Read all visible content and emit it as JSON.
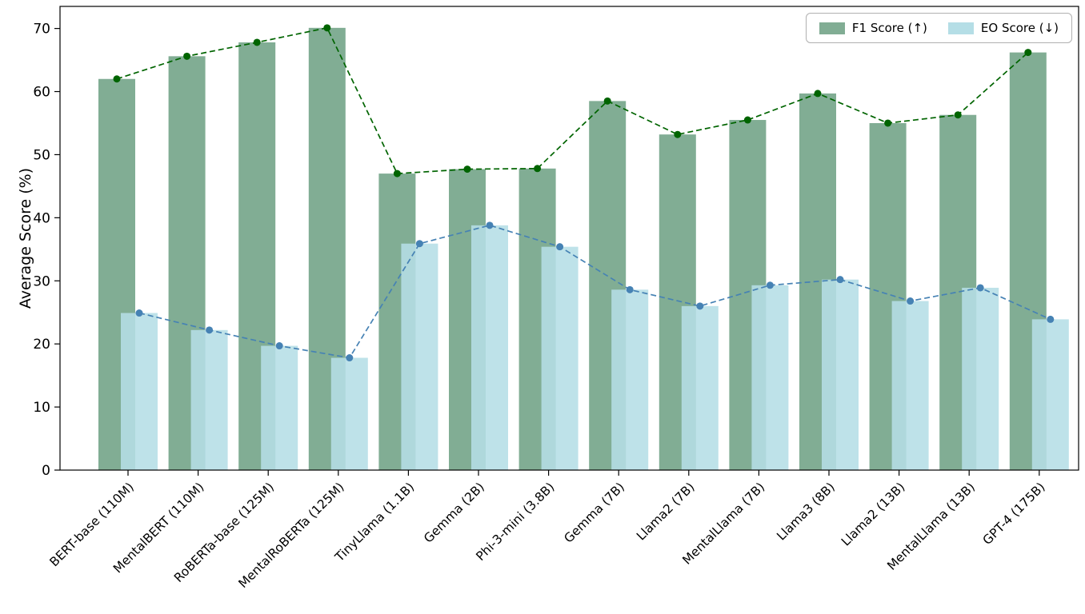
{
  "chart_data": {
    "type": "bar",
    "title": "",
    "xlabel": "",
    "ylabel": "Average Score (%)",
    "ylim": [
      0,
      73.5
    ],
    "yticks": [
      0,
      10,
      20,
      30,
      40,
      50,
      60,
      70
    ],
    "grid": false,
    "legend_position": "upper right",
    "categories": [
      "BERT-base (110M)",
      "MentalBERT (110M)",
      "RoBERTa-base (125M)",
      "MentalRoBERTa (125M)",
      "TinyLlama (1.1B)",
      "Gemma (2B)",
      "Phi-3-mini (3.8B)",
      "Gemma (7B)",
      "Llama2 (7B)",
      "MentalLlama (7B)",
      "Llama3 (8B)",
      "Llama2 (13B)",
      "MentalLlama (13B)",
      "GPT-4 (175B)"
    ],
    "series": [
      {
        "name": "F1 Score (↑)",
        "values": [
          62.0,
          65.6,
          67.8,
          70.1,
          47.0,
          47.7,
          47.8,
          58.5,
          53.2,
          55.5,
          59.7,
          55.0,
          56.3,
          66.2
        ]
      },
      {
        "name": "EO Score (↓)",
        "values": [
          24.9,
          22.2,
          19.7,
          17.8,
          35.9,
          38.8,
          35.4,
          28.6,
          26.0,
          29.3,
          30.2,
          26.8,
          28.9,
          23.9
        ]
      }
    ],
    "colors": {
      "f1_bar": "#81AD94",
      "eo_bar": "#B5DEE6",
      "f1_line": "#006400",
      "eo_line": "#4682B4",
      "axis": "#000000"
    }
  }
}
